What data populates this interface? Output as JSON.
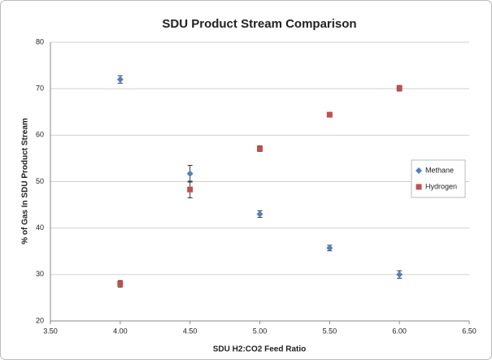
{
  "chart_data": {
    "type": "scatter",
    "title": "SDU Product Stream Comparison",
    "x_label": "SDU H2:CO2 Feed Ratio",
    "y_label": "% of Gas In SDU Product Stream",
    "x": [
      4.0,
      4.5,
      5.0,
      5.5,
      6.0
    ],
    "series": [
      {
        "name": "Methane",
        "color": "#4f81bd",
        "marker": "diamond",
        "values": [
          72,
          51.7,
          43,
          35.7,
          30
        ],
        "errors": [
          0.8,
          1.8,
          0.7,
          0.6,
          0.8
        ]
      },
      {
        "name": "Hydrogen",
        "color": "#c0504d",
        "marker": "square",
        "values": [
          28,
          48.3,
          57.1,
          64.4,
          70.1
        ],
        "errors": [
          0.7,
          1.8,
          0.6,
          0.5,
          0.6
        ]
      }
    ],
    "xlim": [
      3.5,
      6.5
    ],
    "xticks": [
      {
        "value": 3.5,
        "label": "3.50"
      },
      {
        "value": 4,
        "label": "4.00"
      },
      {
        "value": 4.5,
        "label": "4.50"
      },
      {
        "value": 5,
        "label": "5.00"
      },
      {
        "value": 5.5,
        "label": "5.50"
      },
      {
        "value": 6,
        "label": "6.00"
      },
      {
        "value": 6.5,
        "label": "6.50"
      }
    ],
    "ylim": [
      20,
      80
    ],
    "yticks": [
      20,
      30,
      40,
      50,
      60,
      70,
      80
    ],
    "grid": true,
    "legend": "right"
  }
}
